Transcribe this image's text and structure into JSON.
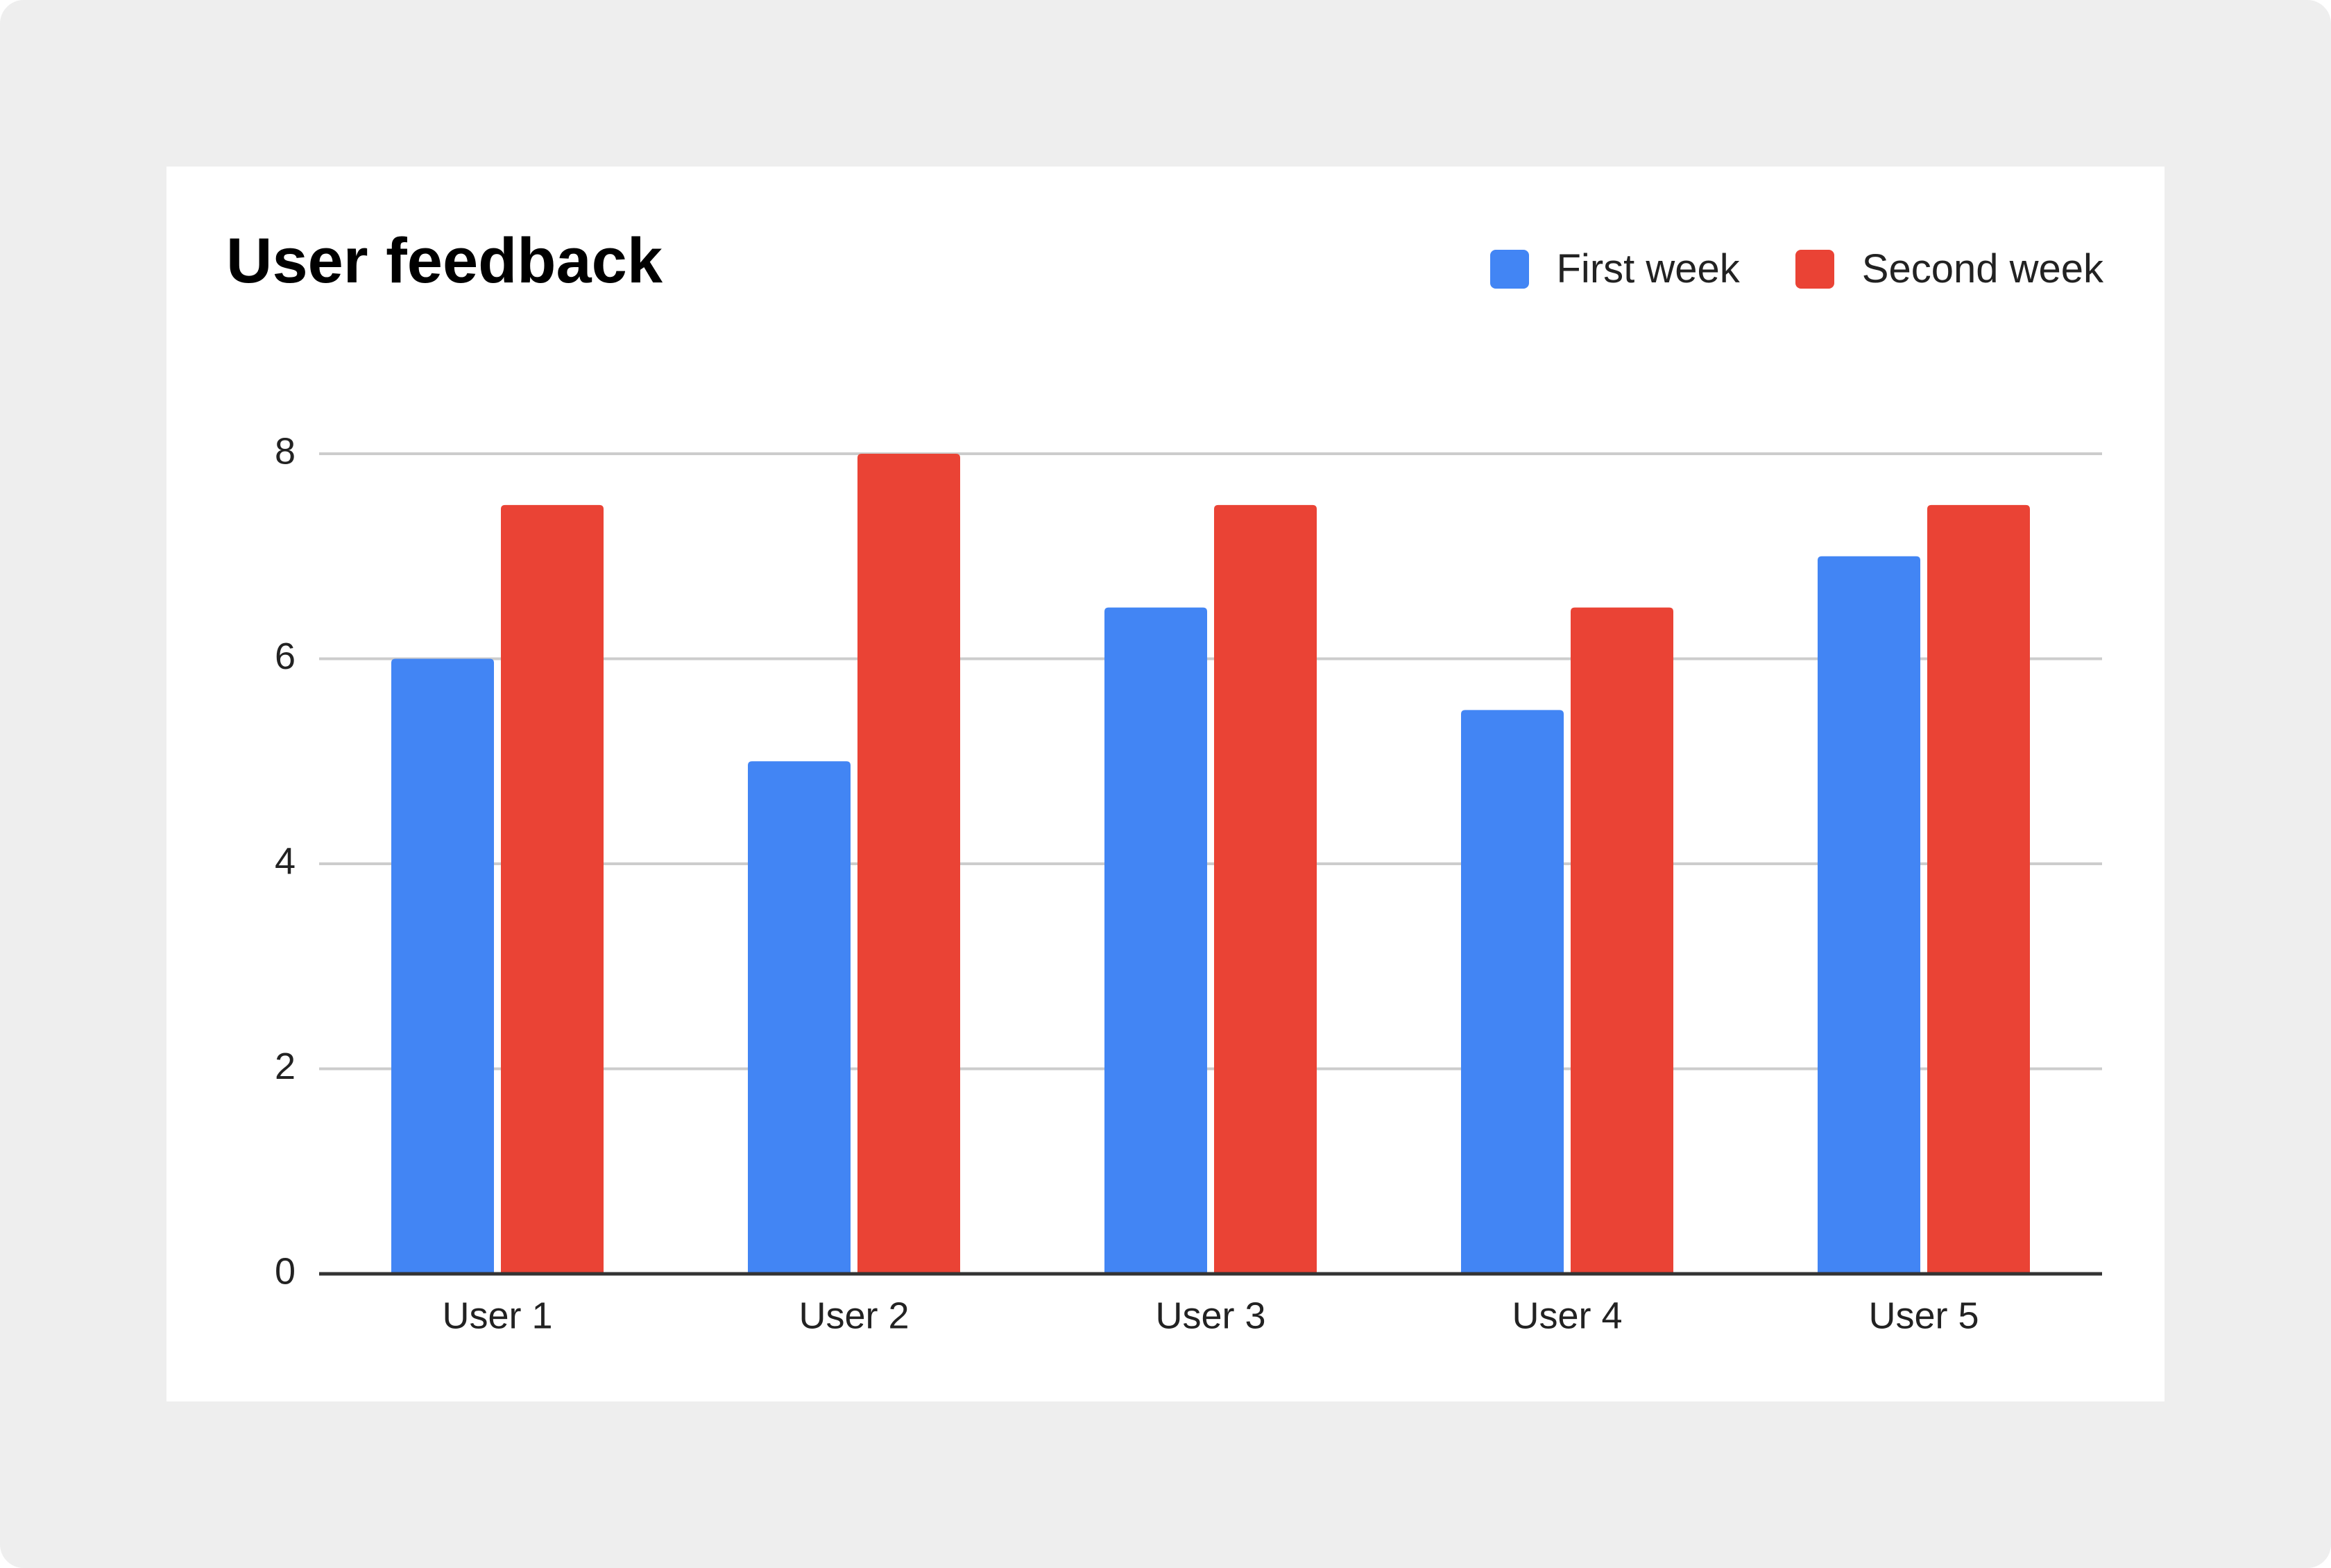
{
  "colors": {
    "background": "#eeeeee",
    "card": "#ffffff",
    "grid": "#cccccc",
    "axis": "#333333"
  },
  "chart_data": {
    "type": "bar",
    "title": "User feedback",
    "categories": [
      "User 1",
      "User 2",
      "User 3",
      "User 4",
      "User 5"
    ],
    "series": [
      {
        "name": "First week",
        "color": "#4285f4",
        "values": [
          6,
          5,
          6.5,
          5.5,
          7
        ]
      },
      {
        "name": "Second week",
        "color": "#ea4335",
        "values": [
          7.5,
          8,
          7.5,
          6.5,
          7.5
        ]
      }
    ],
    "xlabel": "",
    "ylabel": "",
    "ylim": [
      0,
      8
    ],
    "yticks": [
      "0",
      "2",
      "4",
      "6",
      "8"
    ],
    "grid": true,
    "legend_position": "top-right"
  }
}
